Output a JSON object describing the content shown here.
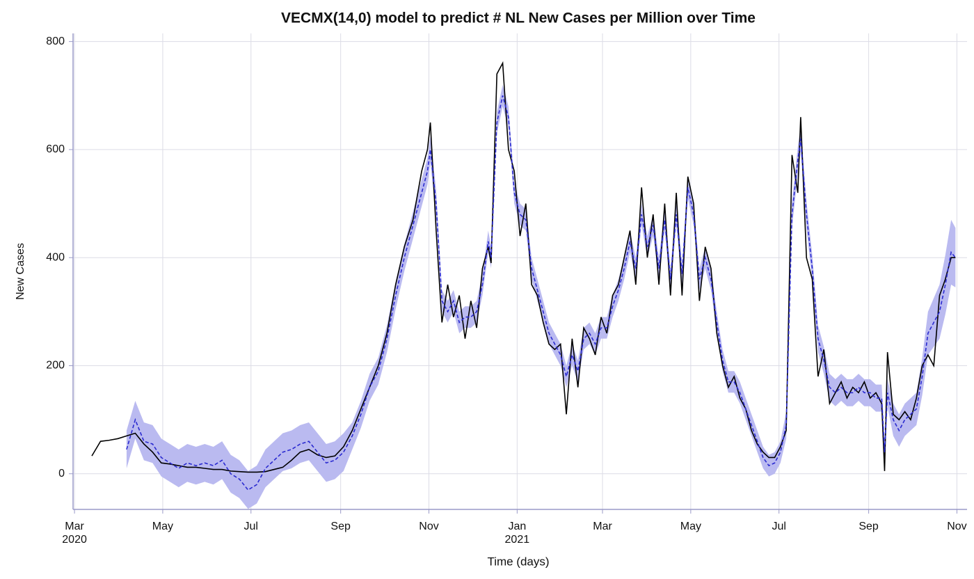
{
  "chart_data": {
    "type": "line",
    "title": "VECMX(14,0) model to predict # NL New Cases per Million over Time",
    "x_label": "Time (days)",
    "y_label": "New Cases",
    "x": [
      12,
      18,
      24,
      30,
      36,
      42,
      48,
      54,
      60,
      66,
      72,
      78,
      84,
      90,
      96,
      102,
      108,
      114,
      120,
      126,
      132,
      138,
      144,
      150,
      156,
      162,
      168,
      174,
      180,
      186,
      192,
      198,
      204,
      210,
      216,
      222,
      228,
      234,
      240,
      244,
      246,
      250,
      254,
      258,
      262,
      266,
      270,
      274,
      278,
      282,
      286,
      288,
      292,
      296,
      300,
      304,
      308,
      312,
      316,
      320,
      324,
      328,
      332,
      336,
      340,
      344,
      348,
      352,
      356,
      360,
      364,
      368,
      372,
      376,
      380,
      384,
      388,
      392,
      396,
      400,
      404,
      408,
      412,
      416,
      420,
      424,
      428,
      432,
      436,
      440,
      444,
      448,
      452,
      456,
      460,
      464,
      468,
      472,
      476,
      480,
      484,
      488,
      492,
      496,
      500,
      502,
      506,
      510,
      514,
      518,
      522,
      526,
      530,
      534,
      538,
      542,
      546,
      550,
      554,
      558,
      560,
      562,
      566,
      570,
      574,
      578,
      582,
      586,
      590,
      594,
      598,
      602,
      606,
      609
    ],
    "series": [
      {
        "color": "#000000",
        "style": "solid",
        "values": [
          33,
          60,
          62,
          65,
          70,
          75,
          55,
          40,
          20,
          18,
          15,
          12,
          12,
          10,
          8,
          8,
          5,
          4,
          3,
          3,
          4,
          8,
          12,
          25,
          40,
          45,
          35,
          30,
          33,
          50,
          80,
          120,
          160,
          200,
          260,
          350,
          420,
          470,
          560,
          600,
          650,
          450,
          280,
          350,
          290,
          330,
          250,
          320,
          270,
          380,
          420,
          390,
          740,
          760,
          600,
          560,
          440,
          500,
          350,
          330,
          280,
          240,
          230,
          240,
          110,
          250,
          160,
          270,
          250,
          220,
          290,
          260,
          330,
          350,
          400,
          450,
          350,
          530,
          400,
          480,
          350,
          500,
          330,
          520,
          330,
          550,
          500,
          320,
          420,
          380,
          260,
          200,
          160,
          180,
          140,
          120,
          80,
          55,
          40,
          30,
          30,
          50,
          80,
          590,
          520,
          660,
          400,
          360,
          180,
          230,
          130,
          150,
          170,
          140,
          160,
          150,
          170,
          140,
          150,
          130,
          5,
          225,
          110,
          100,
          115,
          100,
          140,
          200,
          220,
          200,
          330,
          360,
          400,
          400
        ]
      },
      {
        "color": "#2a2ad0",
        "style": "dashed",
        "values": [
          null,
          null,
          null,
          null,
          45,
          100,
          60,
          55,
          30,
          20,
          10,
          20,
          15,
          20,
          15,
          25,
          0,
          -10,
          -30,
          -20,
          10,
          25,
          40,
          45,
          55,
          60,
          40,
          20,
          25,
          40,
          70,
          110,
          160,
          190,
          250,
          330,
          400,
          460,
          520,
          560,
          600,
          500,
          320,
          300,
          320,
          280,
          290,
          290,
          300,
          350,
          430,
          400,
          650,
          700,
          660,
          520,
          480,
          470,
          380,
          340,
          300,
          260,
          240,
          220,
          180,
          220,
          190,
          250,
          260,
          240,
          270,
          270,
          310,
          340,
          380,
          430,
          380,
          480,
          420,
          460,
          380,
          470,
          360,
          480,
          370,
          530,
          480,
          360,
          400,
          360,
          280,
          210,
          170,
          170,
          150,
          120,
          90,
          60,
          30,
          15,
          20,
          40,
          90,
          480,
          580,
          620,
          480,
          380,
          250,
          210,
          160,
          150,
          160,
          150,
          150,
          160,
          150,
          150,
          140,
          140,
          40,
          150,
          100,
          80,
          100,
          110,
          120,
          180,
          260,
          280,
          300,
          350,
          410,
          400
        ]
      }
    ],
    "band": {
      "color": "#babaf0",
      "lower": [
        null,
        null,
        null,
        null,
        10,
        65,
        25,
        20,
        -5,
        -15,
        -25,
        -15,
        -20,
        -15,
        -20,
        -10,
        -35,
        -45,
        -65,
        -55,
        -25,
        -10,
        5,
        10,
        20,
        25,
        5,
        -15,
        -10,
        5,
        45,
        85,
        135,
        165,
        225,
        305,
        375,
        435,
        495,
        535,
        575,
        475,
        300,
        280,
        300,
        260,
        270,
        270,
        280,
        330,
        410,
        380,
        630,
        680,
        640,
        500,
        460,
        450,
        360,
        320,
        280,
        240,
        220,
        200,
        160,
        200,
        170,
        230,
        240,
        220,
        250,
        250,
        290,
        320,
        360,
        410,
        360,
        460,
        400,
        440,
        360,
        450,
        340,
        460,
        350,
        510,
        460,
        340,
        380,
        340,
        260,
        190,
        150,
        150,
        130,
        100,
        70,
        40,
        10,
        -5,
        0,
        20,
        65,
        455,
        555,
        595,
        455,
        355,
        225,
        185,
        135,
        125,
        135,
        125,
        125,
        135,
        125,
        125,
        115,
        115,
        15,
        125,
        70,
        50,
        70,
        80,
        90,
        145,
        220,
        235,
        250,
        295,
        350,
        345
      ],
      "upper": [
        null,
        null,
        null,
        null,
        80,
        135,
        95,
        90,
        65,
        55,
        45,
        55,
        50,
        55,
        50,
        60,
        35,
        25,
        5,
        15,
        45,
        60,
        75,
        80,
        90,
        95,
        75,
        55,
        60,
        75,
        95,
        135,
        185,
        215,
        275,
        355,
        425,
        485,
        545,
        585,
        625,
        525,
        340,
        320,
        340,
        300,
        310,
        310,
        320,
        370,
        450,
        420,
        670,
        720,
        680,
        540,
        500,
        490,
        400,
        360,
        320,
        280,
        260,
        240,
        200,
        240,
        210,
        270,
        280,
        260,
        290,
        290,
        330,
        360,
        400,
        450,
        400,
        500,
        440,
        480,
        400,
        490,
        380,
        500,
        390,
        550,
        500,
        380,
        420,
        380,
        300,
        230,
        190,
        190,
        170,
        140,
        110,
        80,
        50,
        35,
        40,
        60,
        115,
        505,
        605,
        645,
        505,
        405,
        275,
        235,
        185,
        175,
        185,
        175,
        175,
        185,
        175,
        175,
        165,
        165,
        65,
        175,
        130,
        110,
        130,
        140,
        150,
        215,
        300,
        325,
        350,
        405,
        470,
        455
      ]
    },
    "xlim": [
      -1,
      617
    ],
    "ylim": [
      -66,
      815
    ],
    "xticks": [
      {
        "value": 0,
        "label": "Mar"
      },
      {
        "value": 61,
        "label": "May"
      },
      {
        "value": 122,
        "label": "Jul"
      },
      {
        "value": 184,
        "label": "Sep"
      },
      {
        "value": 245,
        "label": "Nov"
      },
      {
        "value": 306,
        "label": "Jan"
      },
      {
        "value": 365,
        "label": "Mar"
      },
      {
        "value": 426,
        "label": "May"
      },
      {
        "value": 487,
        "label": "Jul"
      },
      {
        "value": 549,
        "label": "Sep"
      },
      {
        "value": 610,
        "label": "Nov"
      }
    ],
    "xticks_year": [
      {
        "value": 0,
        "label": "2020"
      },
      {
        "value": 306,
        "label": "2021"
      }
    ],
    "yticks": [
      0,
      200,
      400,
      600,
      800
    ],
    "grid": true
  }
}
